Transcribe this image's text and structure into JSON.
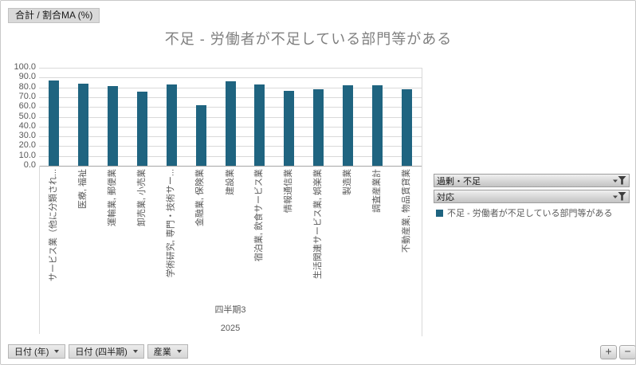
{
  "value_field_button": "合計 / 割合MA (%)",
  "filters": [
    {
      "label": "過剰・不足"
    },
    {
      "label": "対応"
    }
  ],
  "field_buttons": [
    "日付 (年)",
    "日付 (四半期)",
    "産業"
  ],
  "zoom_buttons": {
    "plus": "+",
    "minus": "−"
  },
  "chart_data": {
    "type": "bar",
    "title": "不足 - 労働者が不足している部門等がある",
    "categories": [
      "サービス業（他に分類され...",
      "医療, 福祉",
      "運輸業, 郵便業",
      "卸売業, 小売業",
      "学術研究, 専門・技術サー...",
      "金融業, 保険業",
      "建設業",
      "宿泊業, 飲食サービス業",
      "情報通信業",
      "生活関連サービス業, 娯楽業",
      "製造業",
      "調査産業計",
      "不動産業, 物品賃貸業"
    ],
    "series": [
      {
        "name": "不足 - 労働者が不足している部門等がある",
        "values": [
          87.0,
          84.1,
          81.6,
          75.4,
          83.2,
          62.2,
          85.9,
          83.0,
          76.5,
          78.1,
          81.9,
          82.4,
          78.1
        ]
      }
    ],
    "group_labels": [
      "四半期3",
      "2025"
    ],
    "ylim": [
      0,
      100
    ],
    "ytick_step": 10,
    "ytick_format_decimals": 1,
    "bar_color": "#1f6480",
    "grid": "horizontal",
    "legend_position": "right"
  },
  "colors": {
    "bar": "#1f6480",
    "gridline": "#d9d9d9",
    "axis_text": "#595959",
    "title_text": "#7f7f7f"
  }
}
